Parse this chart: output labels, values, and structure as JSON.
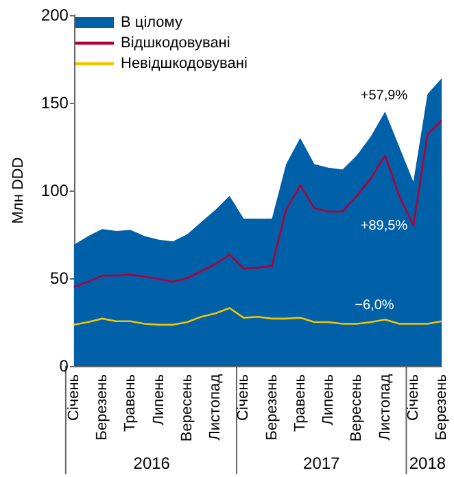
{
  "chart_data": {
    "type": "line",
    "ylabel": "Млн DDD",
    "ylim": [
      0,
      200
    ],
    "yticks": [
      0,
      50,
      100,
      150,
      200
    ],
    "grid": false,
    "legend": "top left",
    "marker": "none",
    "line_style": "solid",
    "categories": [
      "Січень",
      null,
      "Березень",
      null,
      "Травень",
      null,
      "Липень",
      null,
      "Вересень",
      null,
      "Листопад",
      null,
      "Січень",
      null,
      "Березень",
      null,
      "Травень",
      null,
      "Липень",
      null,
      "Вересень",
      null,
      "Листопад",
      null,
      "Січень",
      null,
      "Березень"
    ],
    "series": [
      {
        "name": "В цілому",
        "type": "area",
        "color": "#0060a8",
        "values": [
          69,
          74,
          78,
          77,
          77.5,
          74,
          72,
          71,
          75,
          82,
          89,
          97,
          84,
          84,
          84,
          115,
          130,
          115,
          113,
          112,
          120,
          131,
          145,
          125,
          105,
          155,
          164
        ]
      },
      {
        "name": "Відшкодовувані",
        "color": "#b0003a",
        "values": [
          45,
          48,
          51.5,
          51.5,
          52,
          51,
          49.5,
          48,
          50,
          54,
          58,
          63.5,
          55.5,
          56,
          57,
          89,
          103,
          90,
          88,
          88,
          97,
          107,
          120,
          97,
          80,
          132,
          140
        ]
      },
      {
        "name": "Невідшкодовувані",
        "color": "#f5c400",
        "values": [
          23.5,
          25,
          27,
          25.5,
          25.5,
          24,
          23.5,
          23.5,
          25,
          28,
          30,
          33,
          27.5,
          28,
          27,
          27,
          27.5,
          25,
          25,
          24,
          24,
          25,
          26.5,
          24,
          24,
          24,
          25.5
        ]
      }
    ],
    "annotations": [
      "2016",
      "2017",
      "2018",
      "+57,9%",
      "+89,5%",
      "−6,0%"
    ]
  }
}
